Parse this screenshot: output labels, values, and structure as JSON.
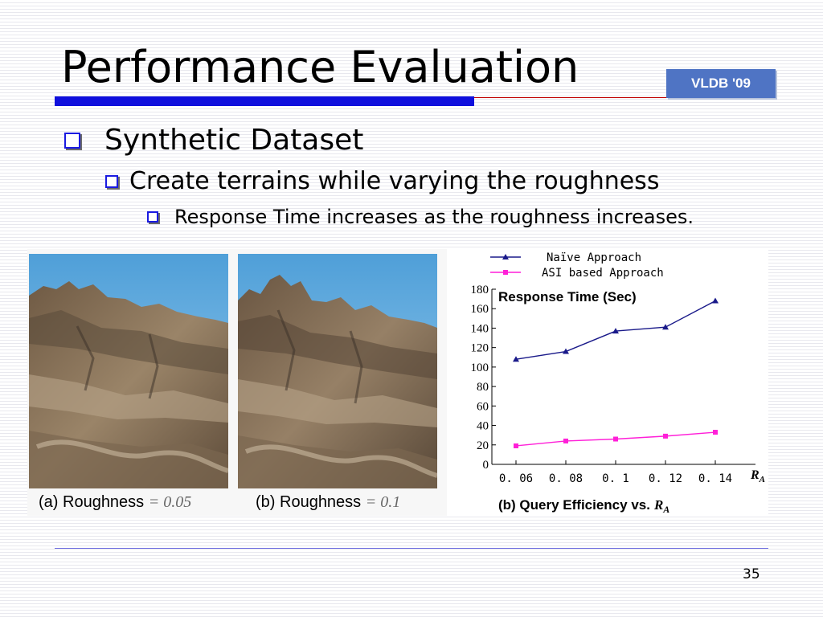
{
  "slide": {
    "title": "Performance Evaluation",
    "badge": "VLDB '09",
    "page_number": "35",
    "colors": {
      "accent": "#1010dd",
      "badge": "#4f74c4",
      "bullet": "#1a1ae0"
    }
  },
  "bullets": [
    {
      "text": "Synthetic Dataset"
    },
    {
      "text": "Create terrains while varying the roughness"
    },
    {
      "text": "Response Time increases as the roughness increases."
    }
  ],
  "figures": {
    "caption_a_label": "(a) Roughness",
    "caption_a_value": "= 0.05",
    "caption_b_label": "(b) Roughness",
    "caption_b_value": "= 0.1",
    "chart_caption": "(b) Query Efficiency vs.",
    "chart_caption_var": "R",
    "chart_caption_sub": "A"
  },
  "chart_data": {
    "type": "line",
    "title": "Response Time (Sec)",
    "xlabel": "R",
    "xlabel_sub": "A",
    "categories": [
      "0. 06",
      "0. 08",
      "0. 1",
      "0. 12",
      "0. 14"
    ],
    "x": [
      0.06,
      0.08,
      0.1,
      0.12,
      0.14
    ],
    "ylim": [
      0,
      180
    ],
    "yticks": [
      "0",
      "20",
      "40",
      "60",
      "80",
      "100",
      "120",
      "140",
      "160",
      "180"
    ],
    "series": [
      {
        "name": "Naïve Approach",
        "color": "#1a1a8a",
        "marker": "triangle",
        "values": [
          108,
          116,
          137,
          141,
          168
        ]
      },
      {
        "name": "ASI based Approach",
        "color": "#ff1fd8",
        "marker": "square",
        "values": [
          19,
          24,
          26,
          29,
          33
        ]
      }
    ],
    "legend": "top"
  }
}
